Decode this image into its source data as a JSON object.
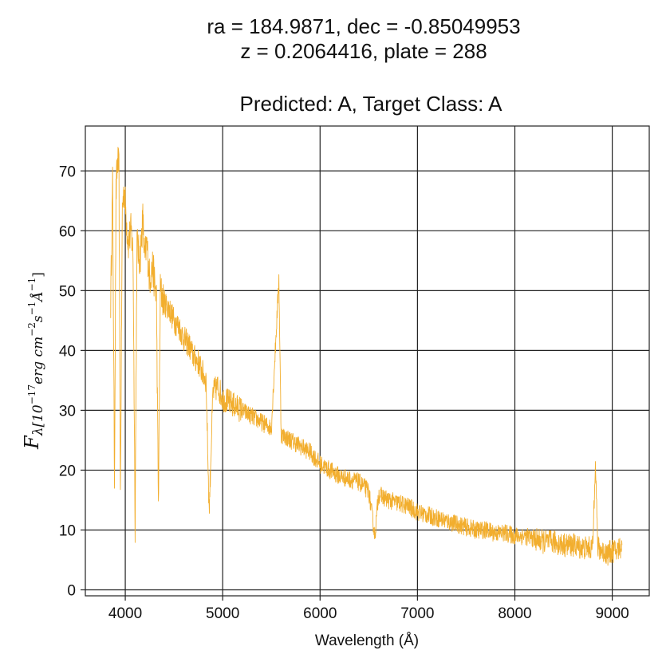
{
  "chart_data": {
    "type": "line",
    "title_lines": [
      "ra = 184.9871, dec = -0.85049953",
      "z = 0.2064416, plate = 288"
    ],
    "subtitle": "Predicted: A, Target Class: A",
    "xlabel": "Wavelength (Å)",
    "ylabel_main": "F",
    "ylabel_sub": "λ[10",
    "ylabel_exp1": "−17",
    "ylabel_mid1": "erg cm",
    "ylabel_exp2": "−2",
    "ylabel_mid2": "s",
    "ylabel_exp3": "−1",
    "ylabel_mid3": "Å",
    "ylabel_exp4": "−1",
    "ylabel_end": "]",
    "xlim": [
      3590,
      9380
    ],
    "ylim": [
      -1,
      77.5
    ],
    "xticks": [
      4000,
      5000,
      6000,
      7000,
      8000,
      9000
    ],
    "yticks": [
      0,
      10,
      20,
      30,
      40,
      50,
      60,
      70
    ],
    "grid": true,
    "line_color": "#f2ae2e",
    "series": [
      {
        "x": [
          3850,
          3870,
          3889,
          3905,
          3920,
          3935,
          3950,
          3970,
          3990,
          4010,
          4030,
          4060,
          4080,
          4101,
          4120,
          4150,
          4180,
          4200,
          4220,
          4250,
          4280,
          4320,
          4340,
          4360,
          4400,
          4450,
          4500,
          4550,
          4600,
          4650,
          4700,
          4750,
          4800,
          4830,
          4861,
          4900,
          4950,
          5000,
          5100,
          5200,
          5300,
          5400,
          5500,
          5577,
          5600,
          5700,
          5800,
          5900,
          6000,
          6100,
          6200,
          6300,
          6400,
          6500,
          6563,
          6600,
          6700,
          6800,
          6900,
          7000,
          7100,
          7200,
          7300,
          7400,
          7500,
          7600,
          7700,
          7800,
          7900,
          8000,
          8100,
          8200,
          8300,
          8400,
          8500,
          8600,
          8700,
          8800,
          8827,
          8850,
          8900,
          8950,
          9000,
          9050,
          9100
        ],
        "y": [
          48,
          68,
          18,
          66,
          72,
          70,
          15.5,
          64,
          67,
          62,
          58,
          60,
          56,
          11,
          58,
          55,
          62,
          55,
          58,
          52,
          54,
          49,
          14,
          50,
          48,
          47,
          45,
          44,
          42,
          41,
          39,
          38,
          36,
          35,
          13,
          33,
          34,
          32,
          31,
          30,
          29,
          28,
          27,
          52,
          26,
          25,
          24,
          23,
          21,
          20,
          19,
          18.5,
          18,
          16.5,
          9,
          16,
          15,
          14.5,
          14,
          13,
          12.5,
          12,
          11.5,
          11,
          10.5,
          10,
          10,
          9.5,
          9.5,
          9,
          9,
          8.5,
          8,
          8,
          7.5,
          7.5,
          7,
          7,
          22.5,
          7,
          6.5,
          6,
          6.5,
          6.5,
          7.5
        ]
      }
    ]
  }
}
